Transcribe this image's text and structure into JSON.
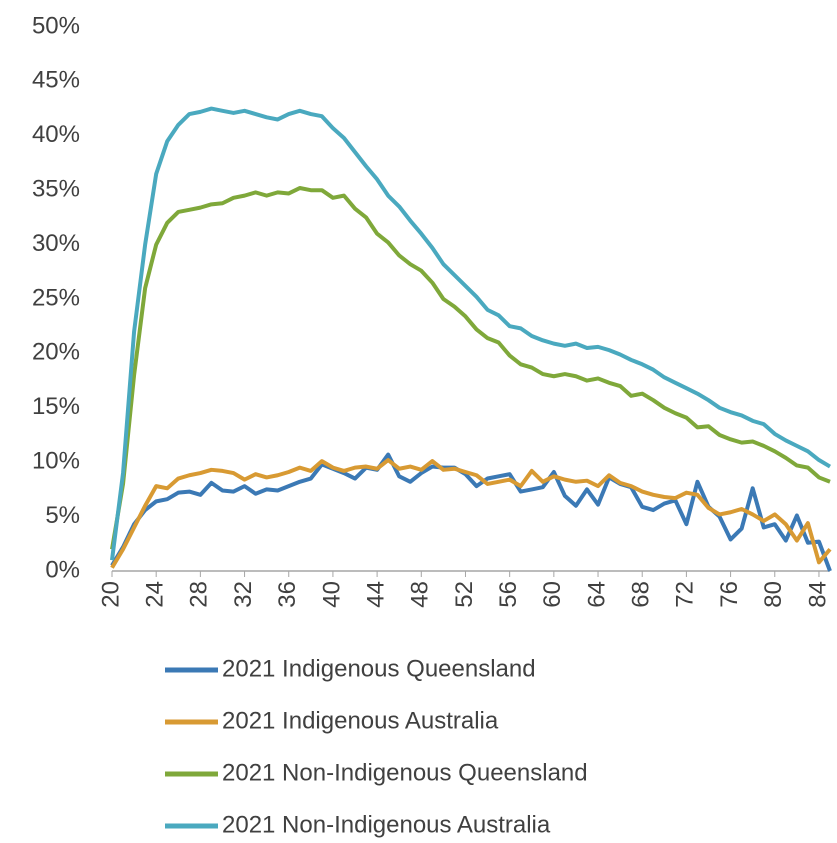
{
  "chart_data": {
    "type": "line",
    "x": [
      20,
      21,
      22,
      23,
      24,
      25,
      26,
      27,
      28,
      29,
      30,
      31,
      32,
      33,
      34,
      35,
      36,
      37,
      38,
      39,
      40,
      41,
      42,
      43,
      44,
      45,
      46,
      47,
      48,
      49,
      50,
      51,
      52,
      53,
      54,
      55,
      56,
      57,
      58,
      59,
      60,
      61,
      62,
      63,
      64,
      65,
      66,
      67,
      68,
      69,
      70,
      71,
      72,
      73,
      74,
      75,
      76,
      77,
      78,
      79,
      80,
      81,
      82,
      83,
      84,
      85
    ],
    "xlim": [
      20,
      85
    ],
    "xticks": [
      20,
      24,
      28,
      32,
      36,
      40,
      44,
      48,
      52,
      56,
      60,
      64,
      68,
      72,
      76,
      80,
      84
    ],
    "ylim": [
      0,
      50
    ],
    "yticks": [
      {
        "value": 0,
        "label": "0%"
      },
      {
        "value": 5,
        "label": "5%"
      },
      {
        "value": 10,
        "label": "10%"
      },
      {
        "value": 15,
        "label": "15%"
      },
      {
        "value": 20,
        "label": "20%"
      },
      {
        "value": 25,
        "label": "25%"
      },
      {
        "value": 30,
        "label": "30%"
      },
      {
        "value": 35,
        "label": "35%"
      },
      {
        "value": 40,
        "label": "40%"
      },
      {
        "value": 45,
        "label": "45%"
      },
      {
        "value": 50,
        "label": "50%"
      }
    ],
    "grid": false,
    "legend": "bottom",
    "series": [
      {
        "name": "2021 Indigenous Queensland",
        "color": "#3b79b5",
        "values": [
          0.5,
          2.2,
          4.3,
          5.6,
          6.4,
          6.6,
          7.2,
          7.3,
          7,
          8.1,
          7.4,
          7.3,
          7.8,
          7.1,
          7.5,
          7.4,
          7.8,
          8.2,
          8.5,
          9.8,
          9.4,
          9,
          8.5,
          9.5,
          9.3,
          10.7,
          8.7,
          8.2,
          9,
          9.6,
          9.5,
          9.5,
          8.9,
          7.8,
          8.5,
          8.7,
          8.9,
          7.3,
          7.5,
          7.7,
          9.1,
          6.9,
          6,
          7.5,
          6.1,
          8.6,
          8,
          7.7,
          5.9,
          5.6,
          6.2,
          6.5,
          4.3,
          8.2,
          5.9,
          5,
          2.9,
          3.9,
          7.6,
          4,
          4.3,
          2.8,
          5.1,
          2.6,
          2.7,
          0
        ]
      },
      {
        "name": "2021 Indigenous Australia",
        "color": "#d89a33",
        "values": [
          0.3,
          2,
          4,
          6,
          7.8,
          7.6,
          8.5,
          8.8,
          9,
          9.3,
          9.2,
          9,
          8.4,
          8.9,
          8.6,
          8.8,
          9.1,
          9.5,
          9.2,
          10.1,
          9.5,
          9.2,
          9.5,
          9.6,
          9.4,
          10.2,
          9.4,
          9.6,
          9.3,
          10.1,
          9.3,
          9.4,
          9.1,
          8.8,
          8,
          8.2,
          8.4,
          7.8,
          9.2,
          8.2,
          8.7,
          8.4,
          8.2,
          8.3,
          7.8,
          8.8,
          8.1,
          7.8,
          7.3,
          7,
          6.8,
          6.7,
          7.2,
          7,
          5.8,
          5.2,
          5.4,
          5.7,
          5.2,
          4.6,
          5.2,
          4.3,
          2.8,
          4.4,
          0.8,
          2
        ]
      },
      {
        "name": "2021 Non-Indigenous Queensland",
        "color": "#7fa83a",
        "values": [
          2,
          8,
          18,
          26,
          30,
          32,
          33,
          33.2,
          33.4,
          33.7,
          33.8,
          34.3,
          34.5,
          34.8,
          34.5,
          34.8,
          34.7,
          35.2,
          35,
          35,
          34.3,
          34.5,
          33.3,
          32.5,
          31,
          30.2,
          29,
          28.2,
          27.6,
          26.5,
          25,
          24.3,
          23.4,
          22.2,
          21.4,
          21,
          19.8,
          19,
          18.7,
          18.1,
          17.9,
          18.1,
          17.9,
          17.5,
          17.7,
          17.3,
          17,
          16.1,
          16.3,
          15.7,
          15,
          14.5,
          14.1,
          13.2,
          13.3,
          12.5,
          12.1,
          11.8,
          11.9,
          11.5,
          11,
          10.4,
          9.7,
          9.5,
          8.6,
          8.2
        ]
      },
      {
        "name": "2021 Non-Indigenous Australia",
        "color": "#4aa9bf",
        "values": [
          1,
          9,
          22,
          30,
          36.5,
          39.5,
          41,
          42,
          42.2,
          42.5,
          42.3,
          42.1,
          42.3,
          42,
          41.7,
          41.5,
          42,
          42.3,
          42,
          41.8,
          40.7,
          39.8,
          38.5,
          37.2,
          36,
          34.5,
          33.5,
          32.2,
          31,
          29.7,
          28.2,
          27.2,
          26.2,
          25.2,
          24,
          23.5,
          22.5,
          22.3,
          21.6,
          21.2,
          20.9,
          20.7,
          20.9,
          20.5,
          20.6,
          20.3,
          19.9,
          19.4,
          19,
          18.5,
          17.8,
          17.3,
          16.8,
          16.3,
          15.7,
          15,
          14.6,
          14.3,
          13.8,
          13.5,
          12.6,
          12,
          11.5,
          11,
          10.2,
          9.6
        ]
      }
    ]
  }
}
